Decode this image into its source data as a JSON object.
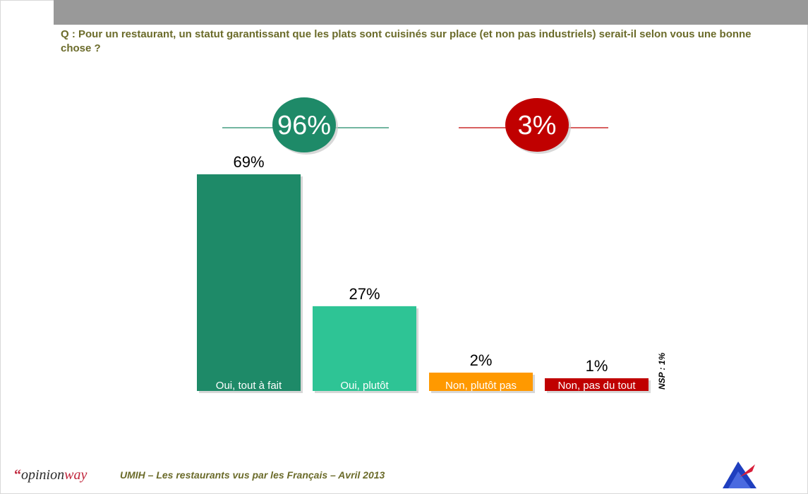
{
  "header": {
    "question": "Q : Pour un restaurant, un statut garantissant que les plats sont cuisinés sur place (et non pas industriels) serait-il selon vous une bonne chose ?"
  },
  "summary": {
    "positive": {
      "label": "96%",
      "color": "#1e8a68"
    },
    "negative": {
      "label": "3%",
      "color": "#c00000"
    }
  },
  "chart_data": {
    "type": "bar",
    "title": "",
    "categories": [
      "Oui, tout à fait",
      "Oui, plutôt",
      "Non, plutôt pas",
      "Non, pas du tout"
    ],
    "values": [
      69,
      27,
      2,
      1
    ],
    "value_labels": [
      "69%",
      "27%",
      "2%",
      "1%"
    ],
    "colors": [
      "#1e8a68",
      "#2ec495",
      "#ff9900",
      "#c00000"
    ],
    "ylim": [
      0,
      69
    ],
    "grid": false,
    "legend": "none",
    "annotation": "NSP : 1%"
  },
  "footer": {
    "logo_quote": "“",
    "logo_main": "opinion",
    "logo_accent": "way",
    "text": "UMIH –  Les restaurants vus par les Français – Avril 2013"
  }
}
